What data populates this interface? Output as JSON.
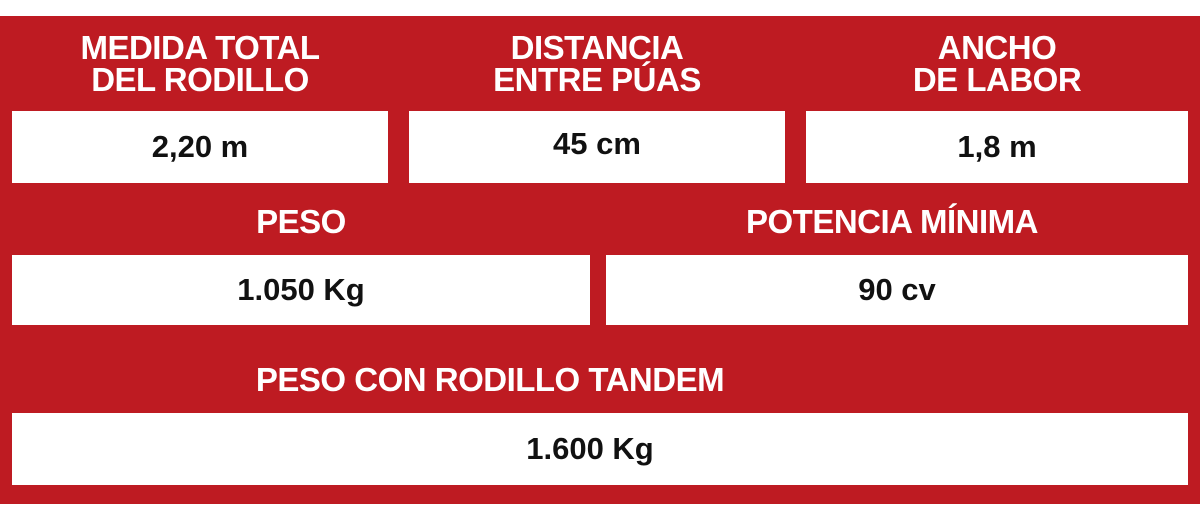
{
  "rows": [
    [
      {
        "label": [
          "MEDIDA TOTAL",
          "DEL RODILLO"
        ],
        "value": "2,20 m"
      },
      {
        "label": [
          "DISTANCIA",
          "ENTRE PÚAS"
        ],
        "value": "45 cm"
      },
      {
        "label": [
          "ANCHO",
          "DE LABOR"
        ],
        "value": "1,8 m"
      }
    ],
    [
      {
        "label": [
          "PESO"
        ],
        "value": "1.050 Kg"
      },
      {
        "label": [
          "POTENCIA MÍNIMA"
        ],
        "value": "90 cv"
      }
    ],
    [
      {
        "label": [
          "PESO CON RODILLO TANDEM"
        ],
        "value": "1.600 Kg"
      }
    ]
  ]
}
